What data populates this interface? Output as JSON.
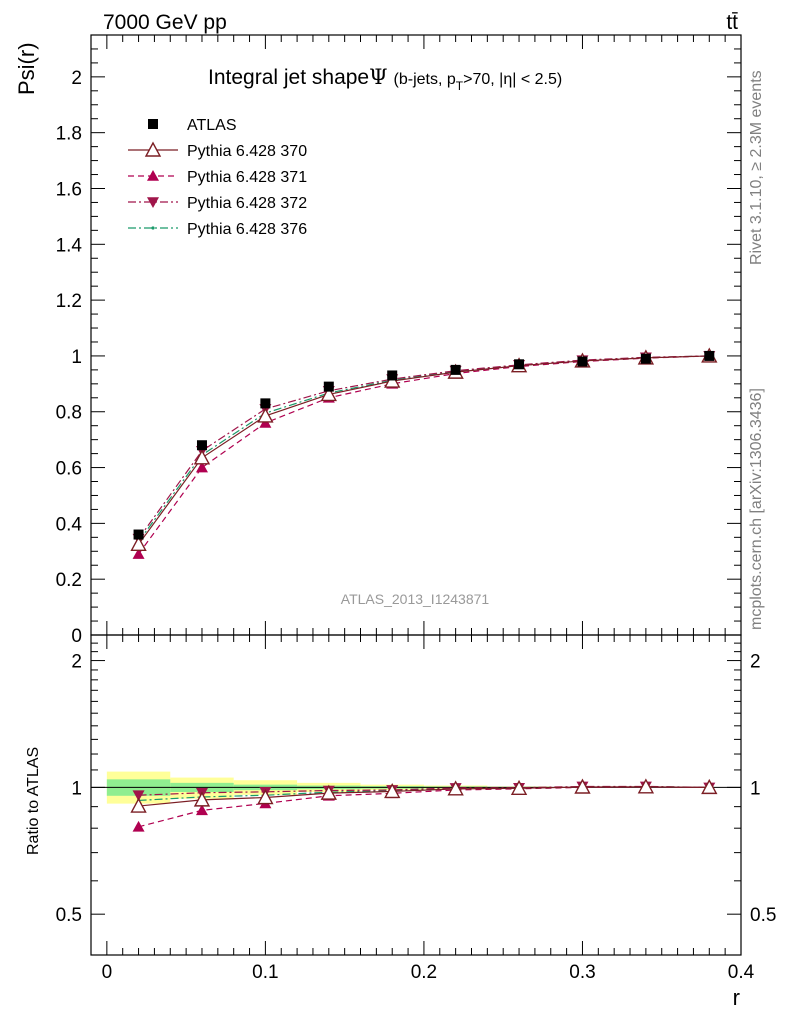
{
  "header": {
    "left": "7000 GeV pp",
    "right": "tt̄",
    "side_top": "Rivet 3.1.10, ≥ 2.3M events",
    "side_bottom": "mcplots.cern.ch [arXiv:1306.3436]"
  },
  "chart_data": [
    {
      "type": "line",
      "title_main": "Integral jet shape",
      "title_symbol": "Ψ",
      "title_cuts_a": "(b-jets, p",
      "title_cuts_sub": "T",
      "title_cuts_b": ">70, |η| < 2.5)",
      "ylabel": "Psi(r)",
      "watermark": "ATLAS_2013_I1243871",
      "xlim": [
        -0.01,
        0.4
      ],
      "ylim": [
        0,
        2.15
      ],
      "yticks": [
        "0",
        "0.2",
        "0.4",
        "0.6",
        "0.8",
        "1",
        "1.2",
        "1.4",
        "1.6",
        "1.8",
        "2"
      ],
      "x": [
        0.02,
        0.06,
        0.1,
        0.14,
        0.18,
        0.22,
        0.26,
        0.3,
        0.34,
        0.38
      ],
      "legend_position": "top-left",
      "series": [
        {
          "name": "ATLAS",
          "color": "#000000",
          "marker": "square",
          "values": [
            0.36,
            0.68,
            0.83,
            0.89,
            0.93,
            0.95,
            0.97,
            0.98,
            0.99,
            1.0
          ]
        },
        {
          "name": "Pythia 6.428 370",
          "color": "#7b1e24",
          "marker": "open-triangle-up",
          "dash": "solid",
          "values": [
            0.325,
            0.635,
            0.785,
            0.862,
            0.91,
            0.942,
            0.965,
            0.982,
            0.993,
            1.0
          ]
        },
        {
          "name": "Pythia 6.428 371",
          "color": "#b00050",
          "marker": "triangle-up",
          "dash": "dashed",
          "values": [
            0.29,
            0.6,
            0.76,
            0.85,
            0.9,
            0.937,
            0.962,
            0.98,
            0.992,
            1.0
          ]
        },
        {
          "name": "Pythia 6.428 372",
          "color": "#a0154a",
          "marker": "triangle-down",
          "dash": "dashdot",
          "values": [
            0.345,
            0.66,
            0.81,
            0.875,
            0.917,
            0.947,
            0.968,
            0.985,
            0.995,
            1.0
          ]
        },
        {
          "name": "Pythia 6.428 376",
          "color": "#1a9a6a",
          "marker": "dot",
          "dash": "dashdot",
          "values": [
            0.335,
            0.645,
            0.795,
            0.867,
            0.913,
            0.944,
            0.966,
            0.983,
            0.994,
            1.0
          ]
        }
      ]
    },
    {
      "type": "line",
      "ylabel": "Ratio to ATLAS",
      "xlabel": "r",
      "xlim": [
        -0.01,
        0.4
      ],
      "ylim": [
        0.4,
        2.3
      ],
      "log_y": true,
      "yticks": [
        "0.5",
        "1",
        "2"
      ],
      "xticks": [
        "0",
        "0.1",
        "0.2",
        "0.3",
        "0.4"
      ],
      "x": [
        0.02,
        0.06,
        0.1,
        0.14,
        0.18,
        0.22,
        0.26,
        0.3,
        0.34,
        0.38
      ],
      "bands": {
        "bin_edges": [
          0,
          0.04,
          0.08,
          0.12,
          0.16,
          0.2,
          0.24,
          0.28
        ],
        "stat": [
          [
            0.955,
            1.045
          ],
          [
            0.975,
            1.025
          ],
          [
            0.985,
            1.015
          ],
          [
            0.99,
            1.01
          ],
          [
            0.993,
            1.007
          ],
          [
            0.995,
            1.005
          ],
          [
            0.997,
            1.003
          ]
        ],
        "total": [
          [
            0.915,
            1.09
          ],
          [
            0.94,
            1.055
          ],
          [
            0.96,
            1.04
          ],
          [
            0.975,
            1.025
          ],
          [
            0.985,
            1.015
          ],
          [
            0.99,
            1.01
          ],
          [
            0.995,
            1.005
          ]
        ],
        "stat_color": "#90ee90",
        "total_color": "#ffff99"
      },
      "series": [
        {
          "name": "Pythia 6.428 370",
          "values": [
            0.903,
            0.934,
            0.946,
            0.969,
            0.978,
            0.992,
            0.995,
            1.002,
            1.003,
            1.0
          ]
        },
        {
          "name": "Pythia 6.428 371",
          "values": [
            0.806,
            0.882,
            0.916,
            0.955,
            0.968,
            0.986,
            0.992,
            1.0,
            1.002,
            1.0
          ]
        },
        {
          "name": "Pythia 6.428 372",
          "values": [
            0.958,
            0.971,
            0.976,
            0.983,
            0.986,
            0.997,
            0.998,
            1.005,
            1.005,
            1.0
          ]
        },
        {
          "name": "Pythia 6.428 376",
          "values": [
            0.931,
            0.949,
            0.958,
            0.974,
            0.982,
            0.994,
            0.996,
            1.003,
            1.004,
            1.0
          ]
        }
      ]
    }
  ]
}
